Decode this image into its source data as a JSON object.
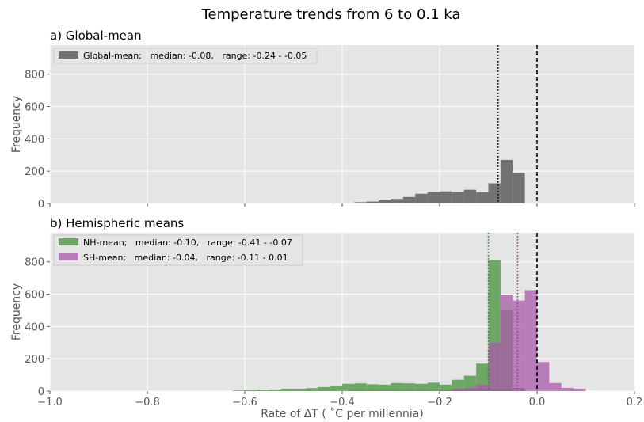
{
  "figure_title": "Temperature trends from 6 to 0.1 ka",
  "xlabel": "Rate of ΔT ( ˚C per millennia)",
  "chart_data": [
    {
      "type": "bar",
      "title": "a) Global-mean",
      "xlabel": "",
      "ylabel": "Frequency",
      "xlim": [
        -1.0,
        0.2
      ],
      "ylim": [
        0,
        980
      ],
      "xticks": [
        -1.0,
        -0.8,
        -0.6,
        -0.4,
        -0.2,
        0.0,
        0.2
      ],
      "xtick_labels": [],
      "yticks": [
        0,
        200,
        400,
        600,
        800
      ],
      "ytick_labels": [
        "0",
        "200",
        "400",
        "600",
        "800"
      ],
      "bin_width": 0.025,
      "grid": true,
      "legend_position": "top-left",
      "series": [
        {
          "name": "Global-mean;   median: -0.08,   range: -0.24 - -0.05",
          "color": "#6b6b6b",
          "bin_edges_start": [
            -0.425,
            -0.4,
            -0.375,
            -0.35,
            -0.325,
            -0.3,
            -0.275,
            -0.25,
            -0.225,
            -0.2,
            -0.175,
            -0.15,
            -0.125,
            -0.1,
            -0.075,
            -0.05
          ],
          "values": [
            3,
            4,
            8,
            12,
            20,
            28,
            40,
            60,
            72,
            75,
            72,
            85,
            70,
            125,
            270,
            190
          ]
        }
      ],
      "reference_lines": [
        {
          "x": -0.08,
          "style": "dotted"
        },
        {
          "x": 0.0,
          "style": "dashed"
        }
      ]
    },
    {
      "type": "bar",
      "title": "b) Hemispheric means",
      "xlabel": "Rate of ΔT ( ˚C per millennia)",
      "ylabel": "Frequency",
      "xlim": [
        -1.0,
        0.2
      ],
      "ylim": [
        0,
        980
      ],
      "xticks": [
        -1.0,
        -0.8,
        -0.6,
        -0.4,
        -0.2,
        0.0,
        0.2
      ],
      "xtick_labels": [
        "−1.0",
        "−0.8",
        "−0.6",
        "−0.4",
        "−0.2",
        "0.0",
        "0.2"
      ],
      "yticks": [
        0,
        200,
        400,
        600,
        800
      ],
      "ytick_labels": [
        "0",
        "200",
        "400",
        "600",
        "800"
      ],
      "bin_width": 0.025,
      "grid": true,
      "legend_position": "top-left",
      "series": [
        {
          "name": "NH-mean;   median: -0.10,   range: -0.41 - -0.07",
          "color": "#5f9e57",
          "bin_edges_start": [
            -0.625,
            -0.6,
            -0.575,
            -0.55,
            -0.525,
            -0.5,
            -0.475,
            -0.45,
            -0.425,
            -0.4,
            -0.375,
            -0.35,
            -0.325,
            -0.3,
            -0.275,
            -0.25,
            -0.225,
            -0.2,
            -0.175,
            -0.15,
            -0.125,
            -0.1,
            -0.075,
            -0.05
          ],
          "values": [
            3,
            5,
            8,
            10,
            15,
            15,
            18,
            25,
            30,
            45,
            48,
            42,
            40,
            50,
            48,
            45,
            52,
            40,
            70,
            95,
            170,
            810,
            500,
            20
          ]
        },
        {
          "name": "SH-mean;   median: -0.04,   range: -0.11 - 0.01",
          "color": "#a85aa8",
          "bin_edges_start": [
            -0.2,
            -0.175,
            -0.15,
            -0.125,
            -0.1,
            -0.075,
            -0.05,
            -0.025,
            0.0,
            0.025,
            0.05,
            0.075
          ],
          "values": [
            5,
            15,
            20,
            40,
            300,
            595,
            560,
            625,
            180,
            50,
            20,
            15
          ]
        }
      ],
      "reference_lines": [
        {
          "x": -0.1,
          "style": "dotted",
          "color": "#2e7d32"
        },
        {
          "x": -0.04,
          "style": "dotted",
          "color": "#8e3a8e"
        },
        {
          "x": 0.0,
          "style": "dashed"
        }
      ]
    }
  ]
}
